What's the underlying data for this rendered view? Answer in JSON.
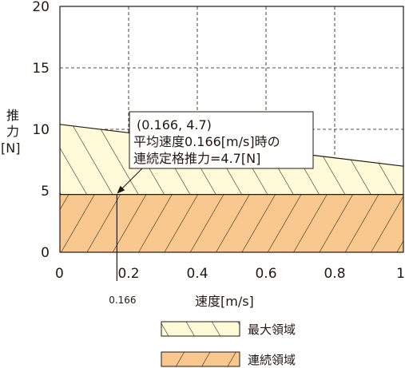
{
  "chart_data": {
    "type": "area",
    "xlabel": "速度[m/s]",
    "ylabel_lines": [
      "推",
      "力",
      "[N]"
    ],
    "xlim": [
      0,
      1
    ],
    "ylim": [
      0,
      20
    ],
    "x_ticks": [
      0,
      0.2,
      0.4,
      0.6,
      0.8,
      1
    ],
    "x_tick_labels": [
      "0",
      "0.2",
      "0.4",
      "0.6",
      "0.8",
      "1"
    ],
    "y_ticks": [
      0,
      5,
      10,
      15,
      20
    ],
    "y_tick_labels": [
      "0",
      "5",
      "10",
      "15",
      "20"
    ],
    "grid": true,
    "series": [
      {
        "name": "最大領域",
        "x": [
          0,
          1
        ],
        "y": [
          10.4,
          7.0
        ],
        "fill": "#fffbd8",
        "hatch": "forward"
      },
      {
        "name": "連続領域",
        "x": [
          0,
          1
        ],
        "y": [
          4.7,
          4.7
        ],
        "fill": "#f9c88f",
        "hatch": "back"
      }
    ],
    "marker": {
      "x": 0.166,
      "y": 4.7,
      "label": "0.166"
    },
    "annotation_lines": [
      "(0.166, 4.7)",
      "平均速度0.166[m/s]時の",
      "連続定格推力=4.7[N]"
    ],
    "legend_position": "bottom"
  }
}
